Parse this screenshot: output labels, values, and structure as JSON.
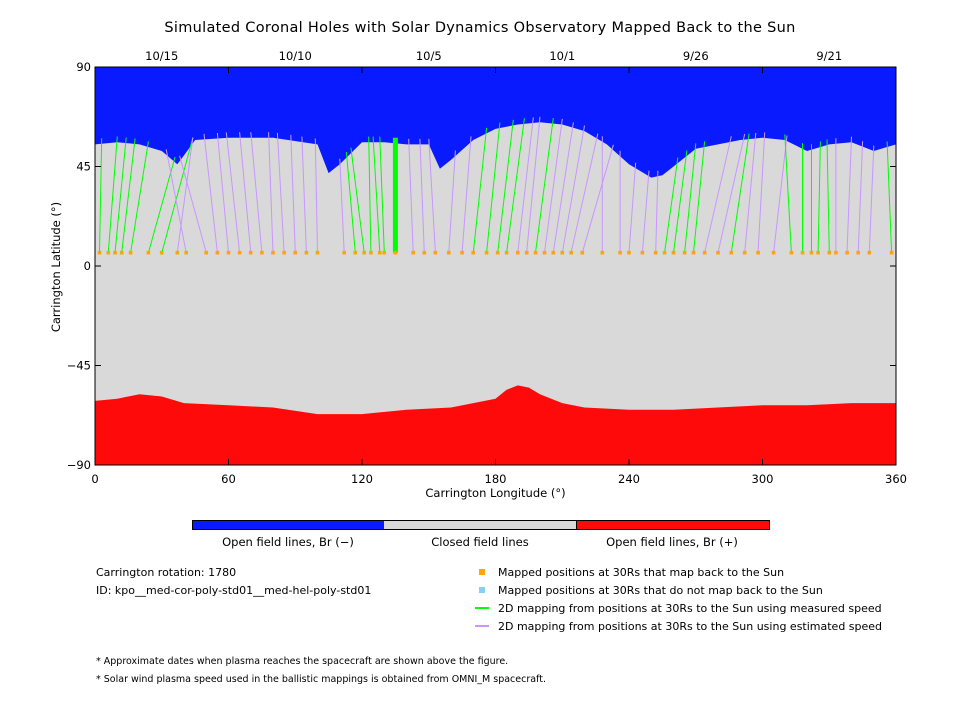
{
  "title": "Simulated Coronal Holes with Solar Dynamics Observatory Mapped Back to the Sun",
  "chart_data": {
    "type": "area",
    "xlabel": "Carrington Longitude (°)",
    "ylabel": "Carrington Latitude (°)",
    "xlim": [
      0,
      360
    ],
    "ylim": [
      -90,
      90
    ],
    "xticks": [
      "0",
      "60",
      "120",
      "180",
      "240",
      "300",
      "360"
    ],
    "xtick_values": [
      0,
      60,
      120,
      180,
      240,
      300,
      360
    ],
    "yticks": [
      "90",
      "45",
      "0",
      "−45",
      "−90"
    ],
    "ytick_values": [
      90,
      45,
      0,
      -45,
      -90
    ],
    "date_ticks": [
      {
        "label": "10/15",
        "longitude": 30
      },
      {
        "label": "10/10",
        "longitude": 90
      },
      {
        "label": "10/5",
        "longitude": 150
      },
      {
        "label": "10/1",
        "longitude": 210
      },
      {
        "label": "9/26",
        "longitude": 270
      },
      {
        "label": "9/21",
        "longitude": 330
      }
    ],
    "colors": {
      "open_negative": "#0a1aff",
      "closed": "#d9d9d9",
      "open_positive": "#ff0a0a",
      "mapped_back": "#ffa500",
      "not_mapped": "#87cefa",
      "measured_speed": "#00ff00",
      "estimated_speed": "#c896ff"
    },
    "north_boundary": {
      "longitude": [
        0,
        10,
        20,
        30,
        37,
        40,
        45,
        60,
        80,
        100,
        105,
        110,
        120,
        130,
        140,
        150,
        155,
        160,
        170,
        180,
        190,
        200,
        210,
        220,
        230,
        240,
        250,
        255,
        260,
        270,
        280,
        290,
        300,
        310,
        320,
        330,
        340,
        350,
        360
      ],
      "latitude": [
        55,
        56,
        55,
        52,
        46,
        50,
        57,
        58,
        58,
        55,
        42,
        46,
        56,
        56,
        55,
        55,
        44,
        48,
        57,
        62,
        64,
        65,
        64,
        61,
        55,
        46,
        40,
        41,
        45,
        53,
        55,
        57,
        58,
        57,
        52,
        55,
        56,
        52,
        55
      ]
    },
    "south_boundary": {
      "longitude": [
        0,
        10,
        20,
        30,
        40,
        60,
        80,
        100,
        120,
        140,
        160,
        180,
        185,
        190,
        195,
        200,
        210,
        220,
        240,
        260,
        280,
        300,
        320,
        340,
        360
      ],
      "latitude": [
        -61,
        -60,
        -58,
        -59,
        -62,
        -63,
        -64,
        -67,
        -67,
        -65,
        -64,
        -60,
        -56,
        -54,
        -55,
        -58,
        -62,
        -64,
        -65,
        -65,
        -64,
        -63,
        -63,
        -62,
        -62
      ]
    },
    "mapping_lines": [
      {
        "from": 2,
        "to": 3,
        "speed": "measured"
      },
      {
        "from": 6,
        "to": 10,
        "speed": "measured"
      },
      {
        "from": 9,
        "to": 14,
        "speed": "measured"
      },
      {
        "from": 12,
        "to": 18,
        "speed": "measured"
      },
      {
        "from": 16,
        "to": 24,
        "speed": "measured"
      },
      {
        "from": 24,
        "to": 36,
        "speed": "measured"
      },
      {
        "from": 30,
        "to": 44,
        "speed": "measured"
      },
      {
        "from": 37,
        "to": 44,
        "speed": "estimated"
      },
      {
        "from": 41,
        "to": 32,
        "speed": "estimated"
      },
      {
        "from": 50,
        "to": 38,
        "speed": "estimated"
      },
      {
        "from": 55,
        "to": 49,
        "speed": "estimated"
      },
      {
        "from": 60,
        "to": 55,
        "speed": "estimated"
      },
      {
        "from": 65,
        "to": 59,
        "speed": "estimated"
      },
      {
        "from": 70,
        "to": 65,
        "speed": "estimated"
      },
      {
        "from": 75,
        "to": 70,
        "speed": "estimated"
      },
      {
        "from": 80,
        "to": 78,
        "speed": "estimated"
      },
      {
        "from": 85,
        "to": 82,
        "speed": "estimated"
      },
      {
        "from": 90,
        "to": 88,
        "speed": "estimated"
      },
      {
        "from": 95,
        "to": 93,
        "speed": "estimated"
      },
      {
        "from": 100,
        "to": 99,
        "speed": "estimated"
      },
      {
        "from": 112,
        "to": 110,
        "speed": "estimated"
      },
      {
        "from": 117,
        "to": 113,
        "speed": "measured"
      },
      {
        "from": 121,
        "to": 115,
        "speed": "measured"
      },
      {
        "from": 124,
        "to": 123,
        "speed": "measured"
      },
      {
        "from": 128,
        "to": 125,
        "speed": "measured"
      },
      {
        "from": 130,
        "to": 128,
        "speed": "measured"
      },
      {
        "from": 135,
        "to": 135,
        "speed": "measured",
        "bold": true
      },
      {
        "from": 143,
        "to": 141,
        "speed": "estimated"
      },
      {
        "from": 148,
        "to": 146,
        "speed": "estimated"
      },
      {
        "from": 153,
        "to": 150,
        "speed": "estimated"
      },
      {
        "from": 159,
        "to": 162,
        "speed": "estimated"
      },
      {
        "from": 165,
        "to": 169,
        "speed": "estimated"
      },
      {
        "from": 170,
        "to": 176,
        "speed": "measured"
      },
      {
        "from": 176,
        "to": 182,
        "speed": "measured"
      },
      {
        "from": 181,
        "to": 188,
        "speed": "measured"
      },
      {
        "from": 185,
        "to": 193,
        "speed": "measured"
      },
      {
        "from": 190,
        "to": 197,
        "speed": "estimated"
      },
      {
        "from": 194,
        "to": 200,
        "speed": "estimated"
      },
      {
        "from": 198,
        "to": 206,
        "speed": "measured"
      },
      {
        "from": 202,
        "to": 210,
        "speed": "estimated"
      },
      {
        "from": 206,
        "to": 215,
        "speed": "estimated"
      },
      {
        "from": 210,
        "to": 220,
        "speed": "estimated"
      },
      {
        "from": 214,
        "to": 226,
        "speed": "estimated"
      },
      {
        "from": 219,
        "to": 233,
        "speed": "estimated"
      },
      {
        "from": 228,
        "to": 228,
        "speed": "estimated"
      },
      {
        "from": 236,
        "to": 236,
        "speed": "estimated"
      },
      {
        "from": 240,
        "to": 243,
        "speed": "estimated"
      },
      {
        "from": 246,
        "to": 249,
        "speed": "estimated"
      },
      {
        "from": 252,
        "to": 253,
        "speed": "estimated"
      },
      {
        "from": 256,
        "to": 262,
        "speed": "measured"
      },
      {
        "from": 260,
        "to": 266,
        "speed": "measured"
      },
      {
        "from": 265,
        "to": 270,
        "speed": "measured"
      },
      {
        "from": 269,
        "to": 274,
        "speed": "measured"
      },
      {
        "from": 274,
        "to": 286,
        "speed": "estimated"
      },
      {
        "from": 280,
        "to": 292,
        "speed": "estimated"
      },
      {
        "from": 286,
        "to": 294,
        "speed": "measured"
      },
      {
        "from": 292,
        "to": 297,
        "speed": "estimated"
      },
      {
        "from": 298,
        "to": 301,
        "speed": "estimated"
      },
      {
        "from": 305,
        "to": 311,
        "speed": "estimated"
      },
      {
        "from": 313,
        "to": 310,
        "speed": "measured"
      },
      {
        "from": 318,
        "to": 318,
        "speed": "measured"
      },
      {
        "from": 322,
        "to": 322,
        "speed": "measured"
      },
      {
        "from": 325,
        "to": 326,
        "speed": "measured"
      },
      {
        "from": 330,
        "to": 329,
        "speed": "measured"
      },
      {
        "from": 333,
        "to": 333,
        "speed": "estimated"
      },
      {
        "from": 338,
        "to": 340,
        "speed": "estimated"
      },
      {
        "from": 343,
        "to": 345,
        "speed": "estimated"
      },
      {
        "from": 348,
        "to": 350,
        "speed": "estimated"
      },
      {
        "from": 358,
        "to": 356,
        "speed": "measured"
      }
    ],
    "mapped_latitude": 6,
    "grid": false,
    "legend_placement": "below"
  },
  "colorbar": {
    "labels": [
      "Open field lines, Br (−)",
      "Closed field lines",
      "Open field lines, Br (+)"
    ]
  },
  "info": {
    "rotation": "Carrington rotation: 1780",
    "id": "ID: kpo__med-cor-poly-std01__med-hel-poly-std01"
  },
  "legend": [
    {
      "label": "Mapped positions at 30Rs that map back to the Sun",
      "kind": "square",
      "color": "#ffa500"
    },
    {
      "label": "Mapped positions at 30Rs that do not map back to the Sun",
      "kind": "square",
      "color": "#87cefa"
    },
    {
      "label": "2D mapping from positions at 30Rs to the Sun using measured speed",
      "kind": "line",
      "color": "#00ff00"
    },
    {
      "label": "2D mapping from positions at 30Rs to the Sun using estimated speed",
      "kind": "line",
      "color": "#c896ff"
    }
  ],
  "notes": [
    "* Approximate dates when plasma reaches the spacecraft are shown above the figure.",
    "* Solar wind plasma speed used in the ballistic mappings is obtained from OMNI_M spacecraft."
  ]
}
